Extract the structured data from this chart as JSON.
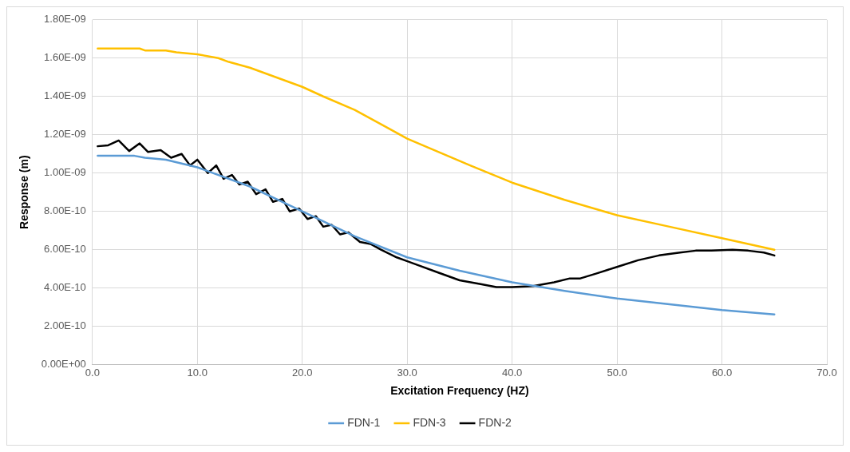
{
  "chart_data": {
    "type": "line",
    "xlabel": "Excitation Frequency (HZ)",
    "ylabel": "Response (m)",
    "legend": "bottom",
    "grid": true,
    "marker": "none",
    "line_style": "solid",
    "xlim": [
      0,
      70
    ],
    "xticks": [
      {
        "value": 0,
        "label": "0.0"
      },
      {
        "value": 10,
        "label": "10.0"
      },
      {
        "value": 20,
        "label": "20.0"
      },
      {
        "value": 30,
        "label": "30.0"
      },
      {
        "value": 40,
        "label": "40.0"
      },
      {
        "value": 50,
        "label": "50.0"
      },
      {
        "value": 60,
        "label": "60.0"
      },
      {
        "value": 70,
        "label": "70.0"
      }
    ],
    "ylim": [
      0,
      1.8e-09
    ],
    "yticks": [
      {
        "value": 0,
        "label": "0.00E+00"
      },
      {
        "value": 2e-10,
        "label": "2.00E-10"
      },
      {
        "value": 4e-10,
        "label": "4.00E-10"
      },
      {
        "value": 6e-10,
        "label": "6.00E-10"
      },
      {
        "value": 8e-10,
        "label": "8.00E-10"
      },
      {
        "value": 1e-09,
        "label": "1.00E-09"
      },
      {
        "value": 1.2e-09,
        "label": "1.20E-09"
      },
      {
        "value": 1.4e-09,
        "label": "1.40E-09"
      },
      {
        "value": 1.6e-09,
        "label": "1.60E-09"
      },
      {
        "value": 1.8e-09,
        "label": "1.80E-09"
      }
    ],
    "series": [
      {
        "name": "FDN-1",
        "color": "#5b9bd5",
        "x": [
          0.5,
          4,
          5,
          7,
          10,
          15,
          20,
          25,
          30,
          35,
          40,
          45,
          50,
          55,
          60,
          65
        ],
        "values": [
          1.09e-09,
          1.09e-09,
          1.08e-09,
          1.07e-09,
          1.03e-09,
          9.3e-10,
          8e-10,
          6.7e-10,
          5.6e-10,
          4.9e-10,
          4.3e-10,
          3.85e-10,
          3.45e-10,
          3.15e-10,
          2.85e-10,
          2.62e-10
        ]
      },
      {
        "name": "FDN-3",
        "color": "#ffc000",
        "x": [
          0.5,
          4.5,
          5,
          7,
          8,
          10,
          12,
          13,
          15,
          20,
          22,
          25,
          28,
          30,
          33,
          36,
          40,
          45,
          50,
          55,
          60,
          65
        ],
        "values": [
          1.65e-09,
          1.65e-09,
          1.64e-09,
          1.64e-09,
          1.63e-09,
          1.62e-09,
          1.6e-09,
          1.58e-09,
          1.55e-09,
          1.45e-09,
          1.4e-09,
          1.33e-09,
          1.24e-09,
          1.18e-09,
          1.11e-09,
          1.04e-09,
          9.5e-10,
          8.6e-10,
          7.8e-10,
          7.2e-10,
          6.6e-10,
          6e-10
        ]
      },
      {
        "name": "FDN-2",
        "color": "#000000",
        "x": [
          0.5,
          1.5,
          2.5,
          3.5,
          4.5,
          5.3,
          6.5,
          7.5,
          8.5,
          9.3,
          10,
          11,
          11.8,
          12.5,
          13.3,
          14,
          14.8,
          15.6,
          16.5,
          17.2,
          18.1,
          18.8,
          19.7,
          20.5,
          21.3,
          22,
          22.8,
          23.6,
          24.4,
          25.5,
          26.5,
          27.5,
          29,
          31,
          33,
          35,
          37,
          38.5,
          40,
          42,
          44,
          45.5,
          46.5,
          48,
          50,
          52,
          54,
          56,
          57.5,
          59,
          61,
          62.5,
          64,
          65
        ],
        "values": [
          1.14e-09,
          1.145e-09,
          1.17e-09,
          1.115e-09,
          1.155e-09,
          1.11e-09,
          1.12e-09,
          1.08e-09,
          1.1e-09,
          1.04e-09,
          1.07e-09,
          1e-09,
          1.04e-09,
          9.7e-10,
          9.9e-10,
          9.4e-10,
          9.55e-10,
          8.9e-10,
          9.15e-10,
          8.5e-10,
          8.65e-10,
          8e-10,
          8.15e-10,
          7.6e-10,
          7.75e-10,
          7.2e-10,
          7.3e-10,
          6.8e-10,
          6.9e-10,
          6.4e-10,
          6.3e-10,
          6e-10,
          5.6e-10,
          5.2e-10,
          4.8e-10,
          4.4e-10,
          4.2e-10,
          4.05e-10,
          4.05e-10,
          4.1e-10,
          4.3e-10,
          4.5e-10,
          4.5e-10,
          4.75e-10,
          5.1e-10,
          5.45e-10,
          5.7e-10,
          5.85e-10,
          5.95e-10,
          5.95e-10,
          6e-10,
          5.95e-10,
          5.85e-10,
          5.7e-10
        ]
      }
    ]
  }
}
